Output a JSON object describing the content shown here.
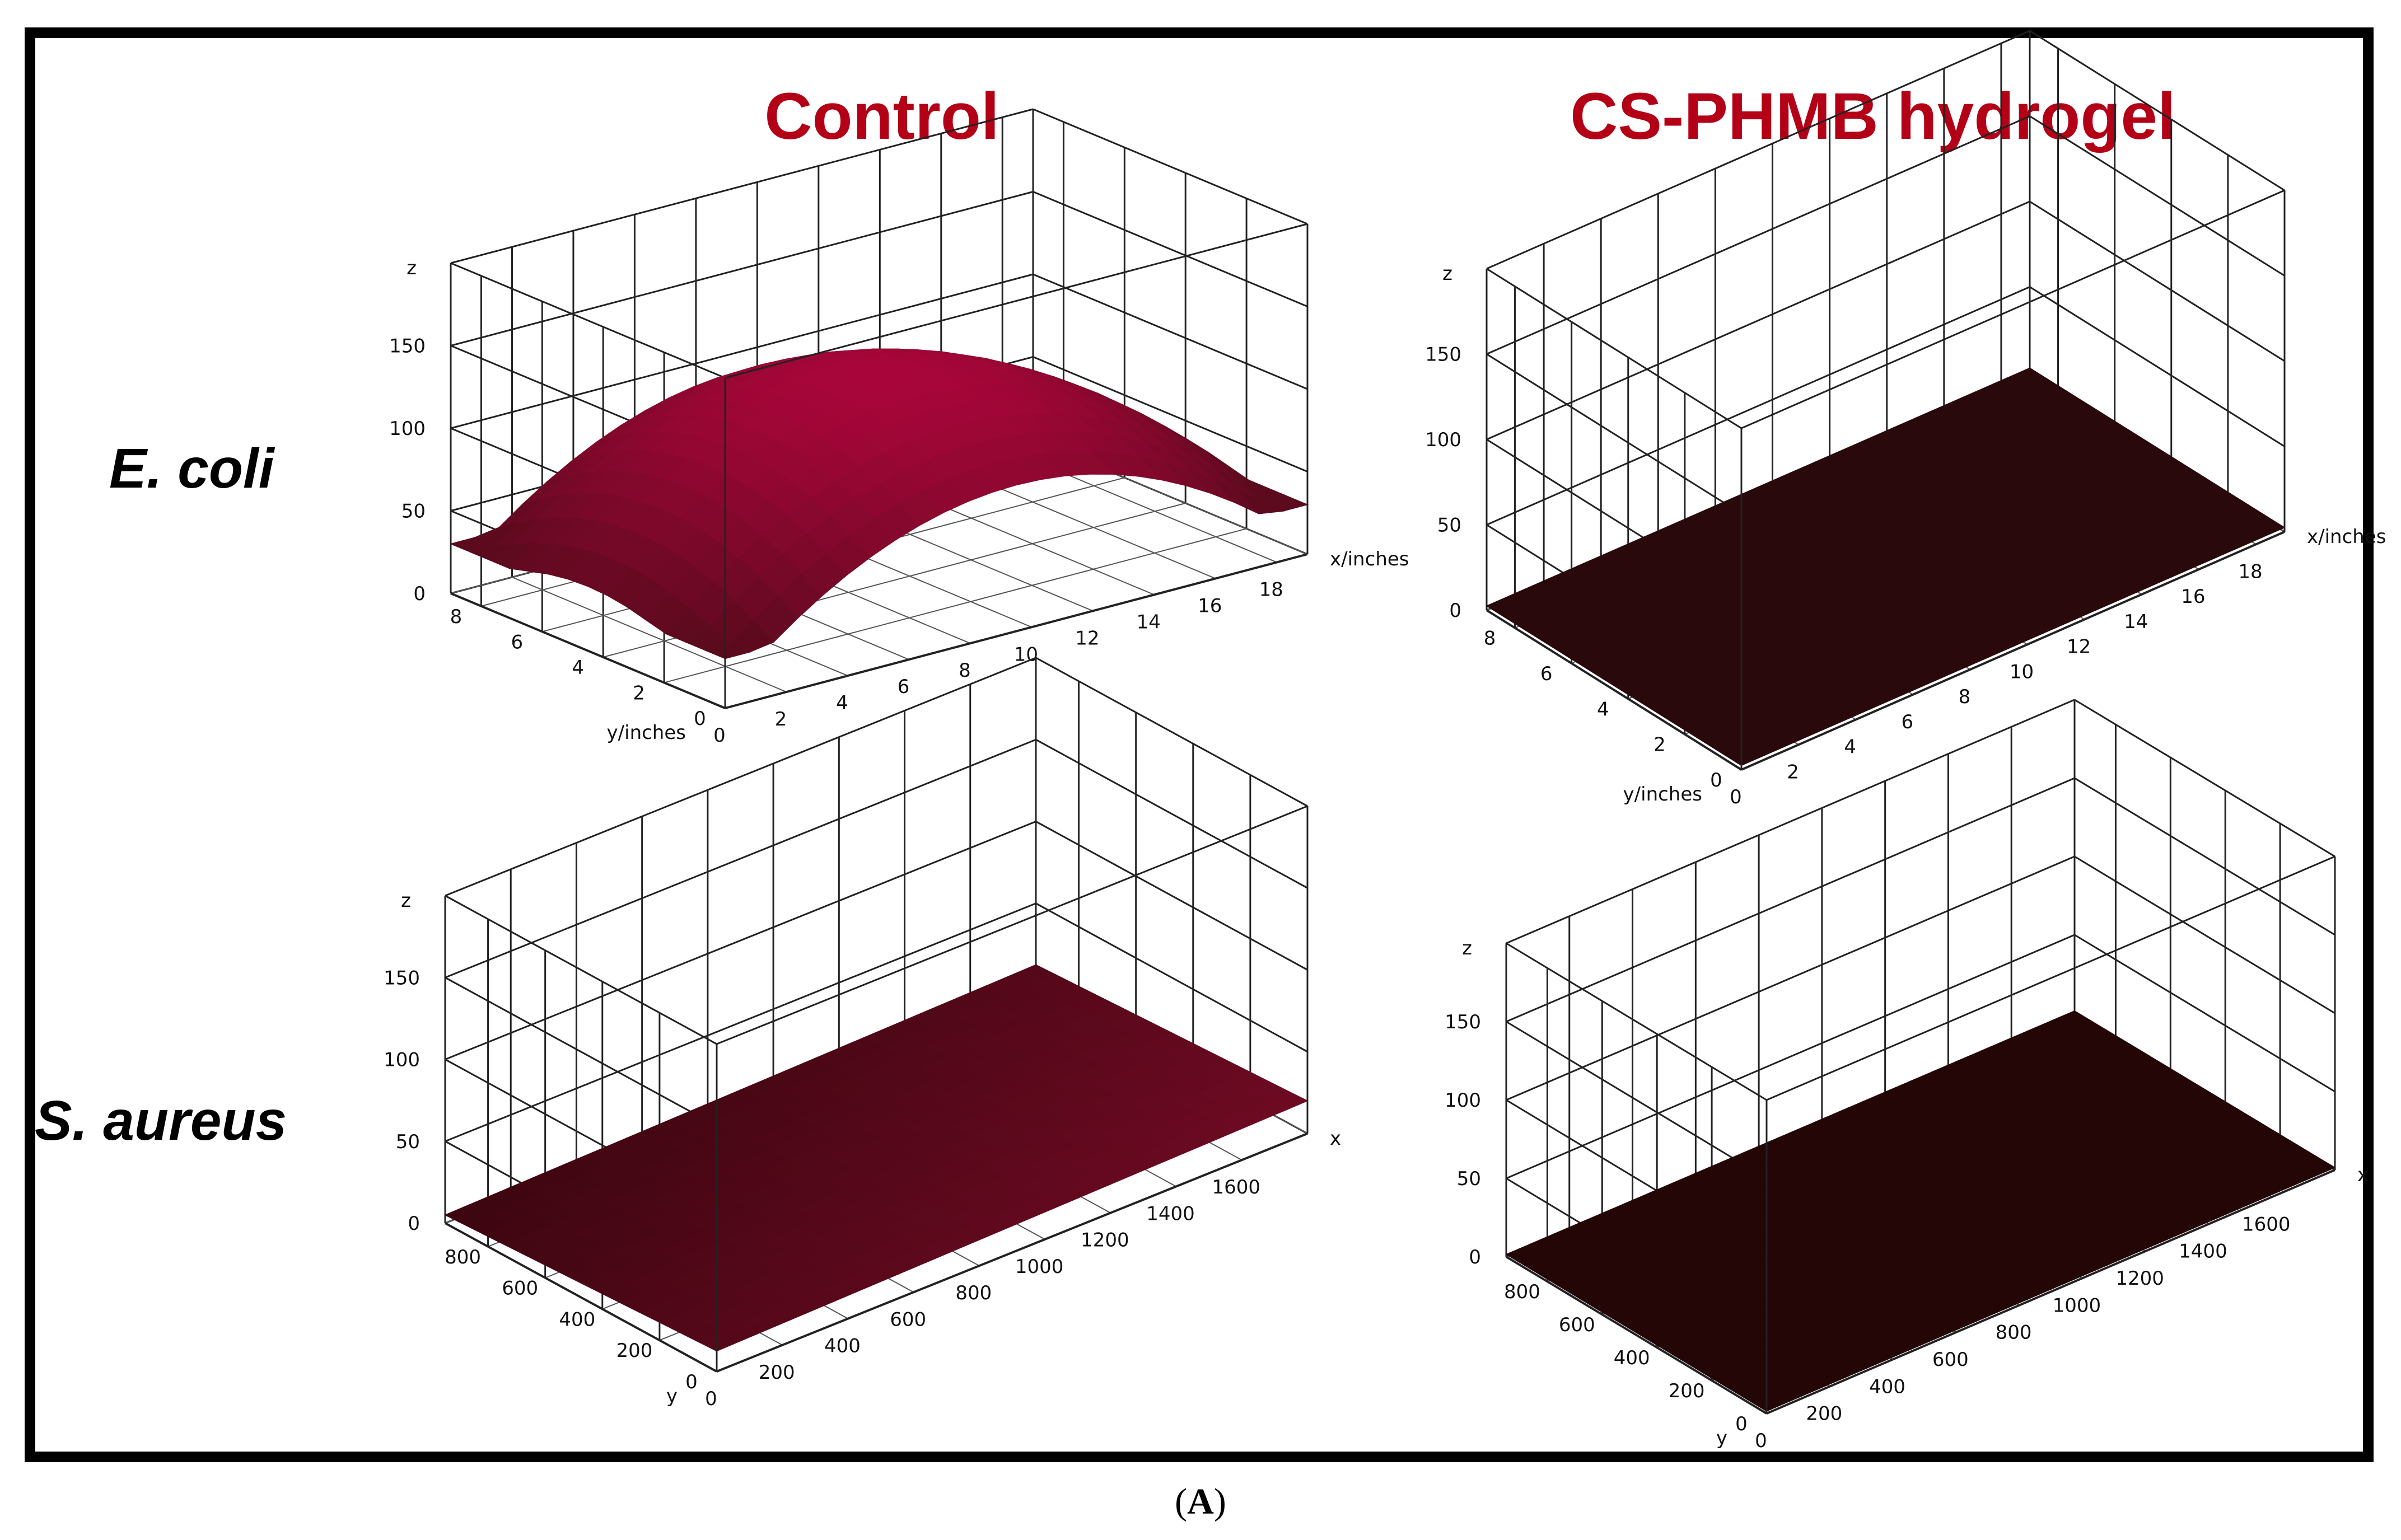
{
  "figure": {
    "columns": [
      "Control",
      "CS-PHMB hydrogel"
    ],
    "rows": [
      "E. coli",
      "S. aureus"
    ],
    "caption": {
      "open": "(",
      "letter": "A",
      "close": ")"
    }
  },
  "colors": {
    "title": "#b30017",
    "frame": "#000000",
    "grid": "#000000"
  },
  "chart_data": [
    {
      "type": "surface3d",
      "panel": "Control / E. coli",
      "xlabel": "x/inches",
      "ylabel": "y/inches",
      "zlabel": "z",
      "x_ticks": [
        "0",
        "2",
        "4",
        "6",
        "8",
        "10",
        "12",
        "14",
        "16",
        "18"
      ],
      "y_ticks": [
        "0",
        "2",
        "4",
        "6",
        "8"
      ],
      "z_ticks": [
        "0",
        "50",
        "100",
        "150"
      ],
      "xlim": [
        0,
        19
      ],
      "ylim": [
        0,
        9
      ],
      "zlim": [
        0,
        200
      ],
      "surface": {
        "shape": "dome",
        "corner_z": 30,
        "peak_z": 120,
        "color_peak": "#a8063a",
        "color_edge": "#5c0a1e"
      }
    },
    {
      "type": "surface3d",
      "panel": "CS-PHMB hydrogel / E. coli",
      "xlabel": "x/inches",
      "ylabel": "y/inches",
      "zlabel": "z",
      "x_ticks": [
        "0",
        "2",
        "4",
        "6",
        "8",
        "10",
        "12",
        "14",
        "16",
        "18"
      ],
      "y_ticks": [
        "0",
        "2",
        "4",
        "6",
        "8"
      ],
      "z_ticks": [
        "0",
        "50",
        "100",
        "150"
      ],
      "xlim": [
        0,
        19
      ],
      "ylim": [
        0,
        9
      ],
      "zlim": [
        0,
        200
      ],
      "surface": {
        "shape": "flat",
        "corner_z": 2,
        "peak_z": 3,
        "color_peak": "#2e0b0f",
        "color_edge": "#240608"
      }
    },
    {
      "type": "surface3d",
      "panel": "Control / S. aureus",
      "xlabel": "x",
      "ylabel": "y",
      "zlabel": "z",
      "x_ticks": [
        "0",
        "200",
        "400",
        "600",
        "800",
        "1000",
        "1200",
        "1400",
        "1600"
      ],
      "y_ticks": [
        "0",
        "200",
        "400",
        "600",
        "800"
      ],
      "z_ticks": [
        "0",
        "50",
        "100",
        "150"
      ],
      "xlim": [
        0,
        1800
      ],
      "ylim": [
        0,
        950
      ],
      "zlim": [
        0,
        200
      ],
      "surface": {
        "shape": "slope",
        "corner_z": 5,
        "peak_z": 20,
        "color_peak": "#6e0a23",
        "color_edge": "#3c0610"
      }
    },
    {
      "type": "surface3d",
      "panel": "CS-PHMB hydrogel / S. aureus",
      "xlabel": "x",
      "ylabel": "y",
      "zlabel": "z",
      "x_ticks": [
        "0",
        "200",
        "400",
        "600",
        "800",
        "1000",
        "1200",
        "1400",
        "1600"
      ],
      "y_ticks": [
        "0",
        "200",
        "400",
        "600",
        "800"
      ],
      "z_ticks": [
        "0",
        "50",
        "100",
        "150"
      ],
      "xlim": [
        0,
        1800
      ],
      "ylim": [
        0,
        950
      ],
      "zlim": [
        0,
        200
      ],
      "surface": {
        "shape": "flat",
        "corner_z": 1,
        "peak_z": 2,
        "color_peak": "#2a0709",
        "color_edge": "#1e0405"
      }
    }
  ]
}
